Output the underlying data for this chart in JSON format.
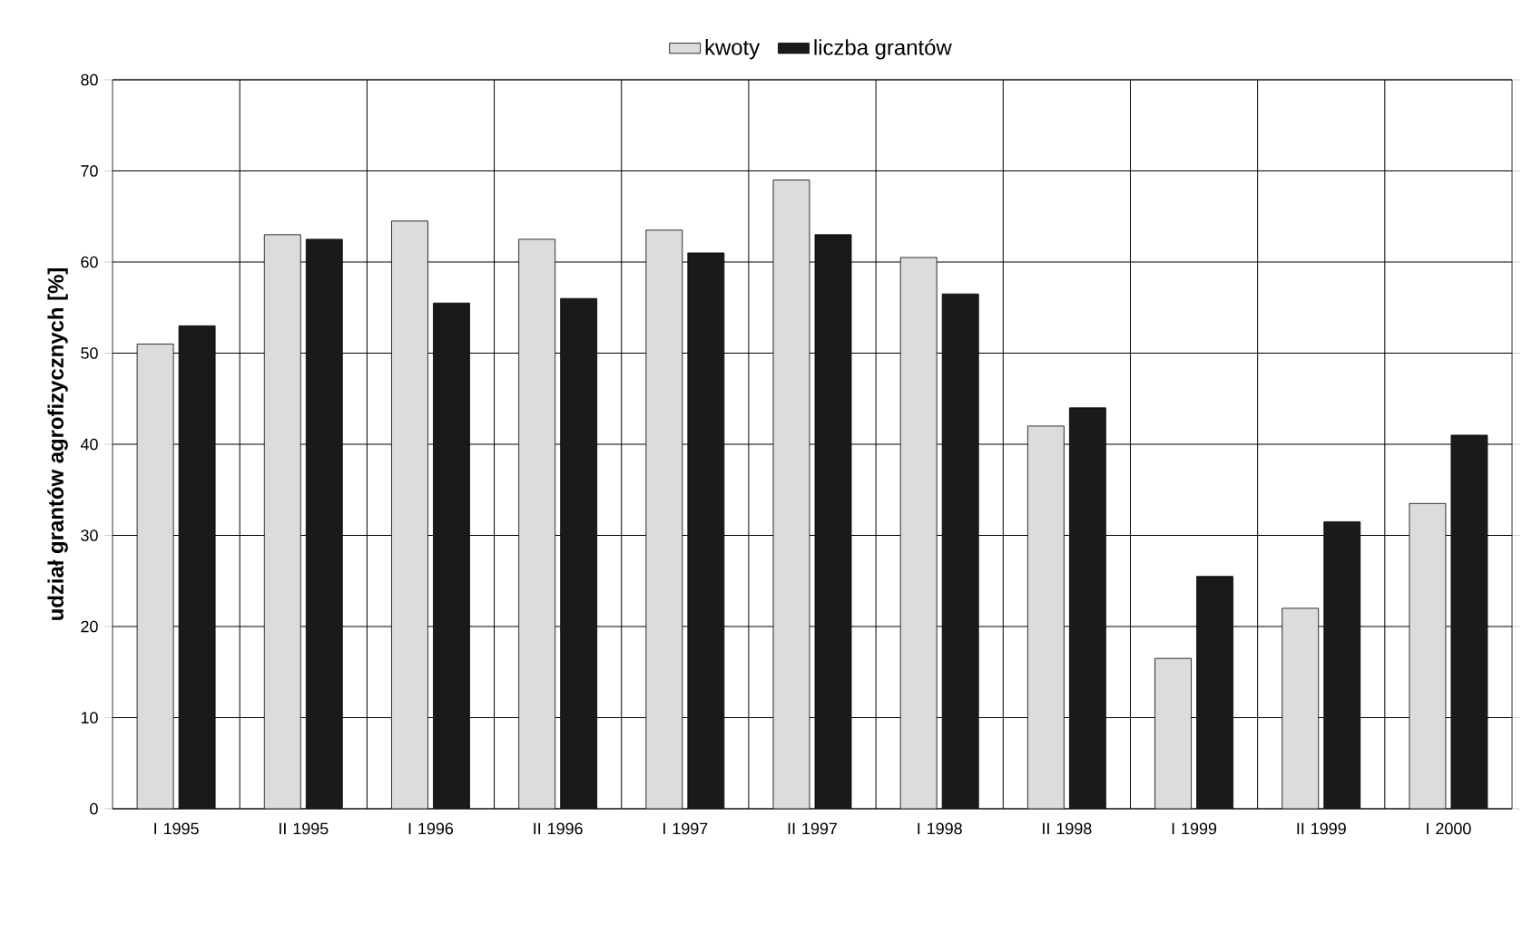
{
  "chart_data": {
    "type": "bar",
    "ylabel": "**udział grantów agrofizycznych [%]**",
    "categories": [
      "I 1995",
      "II 1995",
      "I 1996",
      "II 1996",
      "I 1997",
      "II 1997",
      "I 1998",
      "II 1998",
      "I 1999",
      "II 1999",
      "I 2000"
    ],
    "series": [
      {
        "name": "kwoty",
        "color": "#dcdcdc",
        "values": [
          51,
          63,
          64.5,
          62.5,
          63.5,
          69,
          60.5,
          42,
          16.5,
          22,
          33.5
        ]
      },
      {
        "name": "liczba grantów",
        "color": "#1a1a1a",
        "values": [
          53,
          62.5,
          55.5,
          56,
          61,
          63,
          56.5,
          44,
          25.5,
          31.5,
          41
        ]
      }
    ],
    "ylim": [
      0,
      80
    ],
    "yticks": [
      0,
      10,
      20,
      30,
      40,
      50,
      60,
      70,
      80
    ],
    "grid": true,
    "legend": "top"
  }
}
